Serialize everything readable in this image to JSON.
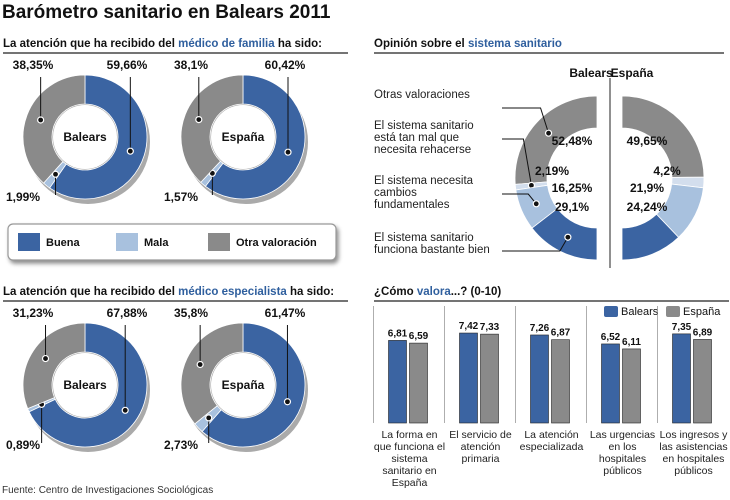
{
  "title": "Barómetro sanitario en Balears  2011",
  "source": "Fuente: Centro de Investigaciones Sociológicas",
  "chart_data": [
    {
      "type": "donut",
      "title": [
        "La atención que ha recibido del",
        "médico de familia",
        "ha sido:"
      ],
      "categories": [
        "Buena",
        "Mala",
        "Otra valoración"
      ],
      "colors": [
        "#3b64a2",
        "#a8c1de",
        "#8a8a8a"
      ],
      "pies": [
        {
          "name": "Balears",
          "values": [
            59.66,
            1.99,
            38.35
          ],
          "value_labels": [
            "59,66%",
            "1,99%",
            "38,35%"
          ]
        },
        {
          "name": "España",
          "values": [
            60.42,
            1.57,
            38.1
          ],
          "value_labels": [
            "60,42%",
            "1,57%",
            "38,1%"
          ]
        }
      ]
    },
    {
      "type": "half-donut",
      "title": [
        "Opinión sobre el",
        "sistema sanitario"
      ],
      "categories": [
        "Otras valoraciones",
        "El sistema sanitario está tan mal que necesita rehacerse",
        "El sistema necesita cambios fundamentales",
        "El sistema sanitario funciona bastante bien"
      ],
      "colors": [
        "#8a8a8a",
        "#d3deed",
        "#a8c1de",
        "#3b64a2"
      ],
      "pies": [
        {
          "name": "Balears",
          "values": [
            52.48,
            2.19,
            16.25,
            29.1
          ],
          "value_labels": [
            "52,48%",
            "2,19%",
            "16,25%",
            "29,1%"
          ]
        },
        {
          "name": "España",
          "values": [
            49.65,
            4.2,
            21.9,
            24.24
          ],
          "value_labels": [
            "49,65%",
            "4,2%",
            "21,9%",
            "24,24%"
          ]
        }
      ]
    },
    {
      "type": "donut",
      "title": [
        "La atención que ha recibido del",
        "médico especialista",
        "ha sido:"
      ],
      "colors": [
        "#3b64a2",
        "#a8c1de",
        "#8a8a8a"
      ],
      "pies": [
        {
          "name": "Balears",
          "values": [
            67.88,
            0.89,
            31.23
          ],
          "value_labels": [
            "67,88%",
            "0,89%",
            "31,23%"
          ]
        },
        {
          "name": "España",
          "values": [
            61.47,
            2.73,
            35.8
          ],
          "value_labels": [
            "61,47%",
            "2,73%",
            "35,8%"
          ]
        }
      ]
    },
    {
      "type": "bar",
      "title": [
        "¿Cómo",
        "valora",
        "...? (0-10)"
      ],
      "categories": [
        "La forma en que funciona el sistema sanitario en España",
        "El servicio de atención primaria",
        "La atención especializada",
        "Las urgencias en los hospitales públicos",
        "Los ingresos y las asistencias en hospitales públicos"
      ],
      "series": [
        {
          "name": "Balears",
          "color": "#3b64a2",
          "values": [
            6.81,
            7.42,
            7.26,
            6.52,
            7.35
          ],
          "value_labels": [
            "6,81",
            "7,42",
            "7,26",
            "6,52",
            "7,35"
          ]
        },
        {
          "name": "España",
          "color": "#8a8a8a",
          "values": [
            6.59,
            7.33,
            6.87,
            6.11,
            6.89
          ],
          "value_labels": [
            "6,59",
            "7,33",
            "6,87",
            "6,11",
            "6,89"
          ]
        }
      ],
      "ylim": [
        0,
        8
      ]
    }
  ]
}
